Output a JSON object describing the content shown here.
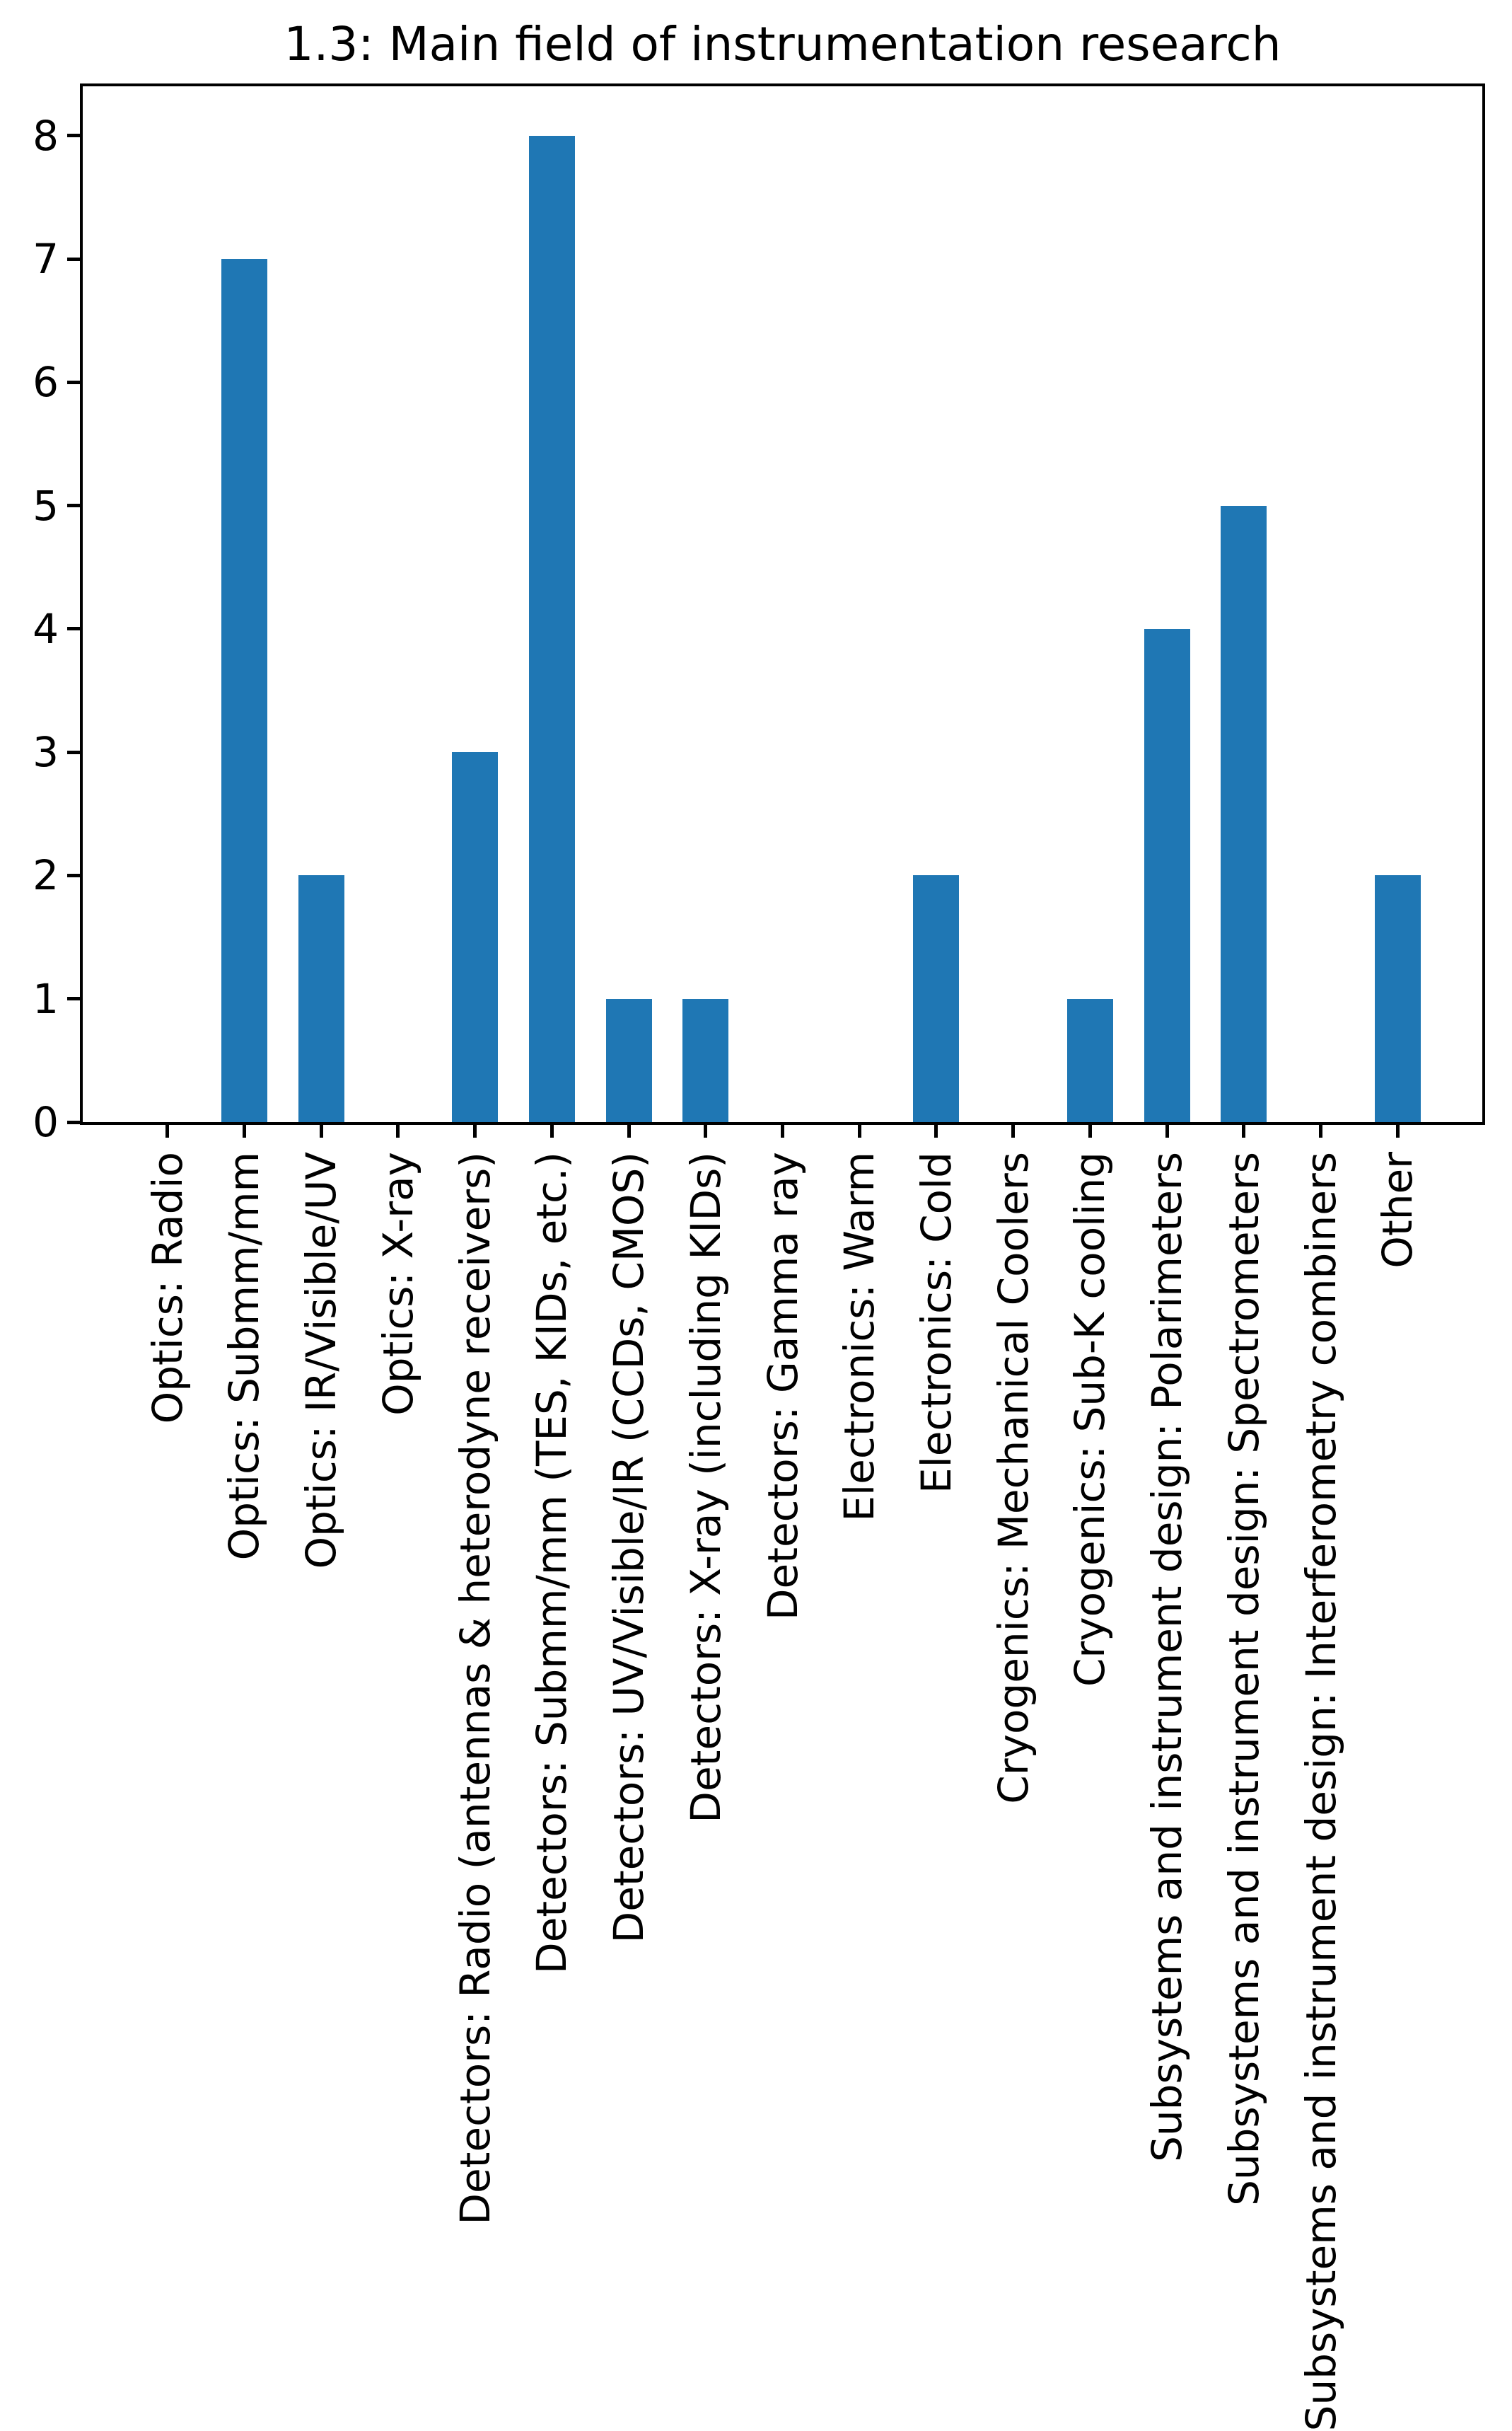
{
  "figure": {
    "background": "#ffffff"
  },
  "chart_data": {
    "type": "bar",
    "title": "1.3: Main field of instrumentation research",
    "categories": [
      "Optics: Radio",
      "Optics: Submm/mm",
      "Optics: IR/Visible/UV",
      "Optics: X-ray",
      "Detectors: Radio (antennas & heterodyne receivers)",
      "Detectors: Submm/mm (TES, KIDs, etc.)",
      "Detectors: UV/Visible/IR (CCDs, CMOS)",
      "Detectors: X-ray (including KIDs)",
      "Detectors: Gamma ray",
      "Electronics: Warm",
      "Electronics: Cold",
      "Cryogenics: Mechanical Coolers",
      "Cryogenics: Sub-K cooling",
      "Subsystems and instrument design: Polarimeters",
      "Subsystems and instrument design: Spectrometers",
      "Subsystems and instrument design: Interferometry combiners",
      "Other"
    ],
    "values": [
      0,
      7,
      2,
      0,
      3,
      8,
      1,
      1,
      0,
      0,
      2,
      0,
      1,
      4,
      5,
      0,
      2
    ],
    "xlabel": "",
    "ylabel": "",
    "yticks": [
      0,
      1,
      2,
      3,
      4,
      5,
      6,
      7,
      8
    ],
    "ylim": [
      0,
      8.4
    ],
    "x_tick_rotation": 90,
    "bar_color": "#1f77b4",
    "axis_color": "#000000",
    "text_color": "#000000",
    "grid": false,
    "legend": false
  }
}
